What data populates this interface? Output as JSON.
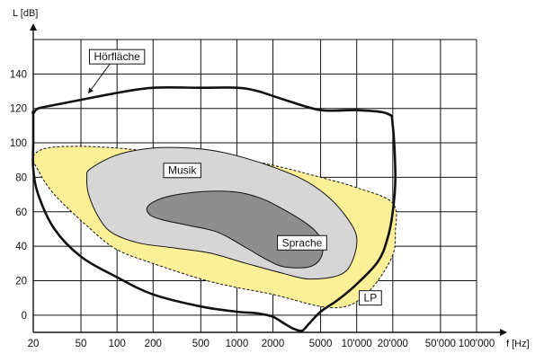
{
  "chart_data": {
    "type": "area",
    "xlabel": "f [Hz]",
    "ylabel": "L [dB]",
    "x_scale": "log",
    "xlim": [
      20,
      100000
    ],
    "ylim": [
      -10,
      160
    ],
    "grid": true,
    "x_ticks": [
      {
        "value": 20,
        "label": "20"
      },
      {
        "value": 50,
        "label": "50"
      },
      {
        "value": 100,
        "label": "100"
      },
      {
        "value": 200,
        "label": "200"
      },
      {
        "value": 500,
        "label": "500"
      },
      {
        "value": 1000,
        "label": "1000"
      },
      {
        "value": 2000,
        "label": "2000"
      },
      {
        "value": 5000,
        "label": "5000"
      },
      {
        "value": 10000,
        "label": "10'000"
      },
      {
        "value": 20000,
        "label": "20'000"
      },
      {
        "value": 50000,
        "label": "50'000"
      },
      {
        "value": 100000,
        "label": "100'000"
      }
    ],
    "y_ticks": [
      0,
      20,
      40,
      60,
      80,
      100,
      120,
      140
    ],
    "regions": [
      {
        "name": "LP",
        "style": "yellow-dashed",
        "fill": "#FBEF98",
        "label_at": {
          "f": 13000,
          "L": 10
        },
        "points": [
          [
            20,
            92
          ],
          [
            26,
            97
          ],
          [
            50,
            98
          ],
          [
            100,
            97
          ],
          [
            200,
            95
          ],
          [
            500,
            93
          ],
          [
            1000,
            91
          ],
          [
            2000,
            87
          ],
          [
            5000,
            80
          ],
          [
            10000,
            74
          ],
          [
            20000,
            65
          ],
          [
            21000,
            48
          ],
          [
            20000,
            35
          ],
          [
            15000,
            20
          ],
          [
            11000,
            10
          ],
          [
            8000,
            5
          ],
          [
            5000,
            5
          ],
          [
            2000,
            12
          ],
          [
            1000,
            16
          ],
          [
            500,
            21
          ],
          [
            200,
            30
          ],
          [
            100,
            38
          ],
          [
            60,
            50
          ],
          [
            30,
            70
          ],
          [
            22,
            84
          ]
        ]
      },
      {
        "name": "Musik",
        "style": "light-gray",
        "fill": "#D6D6D6",
        "label_at": {
          "f": 350,
          "L": 84
        },
        "points": [
          [
            60,
            85
          ],
          [
            100,
            93
          ],
          [
            200,
            97
          ],
          [
            400,
            97
          ],
          [
            700,
            95
          ],
          [
            1200,
            91
          ],
          [
            2000,
            86
          ],
          [
            3500,
            79
          ],
          [
            5500,
            70
          ],
          [
            8000,
            58
          ],
          [
            10000,
            45
          ],
          [
            9000,
            30
          ],
          [
            7000,
            23
          ],
          [
            4000,
            21
          ],
          [
            2500,
            24
          ],
          [
            1200,
            30
          ],
          [
            600,
            36
          ],
          [
            300,
            39
          ],
          [
            150,
            42
          ],
          [
            90,
            48
          ],
          [
            70,
            57
          ],
          [
            58,
            70
          ],
          [
            56,
            80
          ]
        ]
      },
      {
        "name": "Sprache",
        "style": "dark-gray",
        "fill": "#8E8E8E",
        "label_at": {
          "f": 3500,
          "L": 42
        },
        "points": [
          [
            180,
            63
          ],
          [
            240,
            68
          ],
          [
            400,
            71
          ],
          [
            700,
            72
          ],
          [
            1100,
            71
          ],
          [
            1700,
            67
          ],
          [
            2500,
            61
          ],
          [
            3500,
            55
          ],
          [
            4500,
            49
          ],
          [
            5200,
            42
          ],
          [
            5000,
            33
          ],
          [
            4000,
            28
          ],
          [
            2500,
            28
          ],
          [
            1800,
            32
          ],
          [
            1200,
            39
          ],
          [
            700,
            48
          ],
          [
            400,
            52
          ],
          [
            250,
            55
          ],
          [
            190,
            58
          ]
        ]
      },
      {
        "name": "Hörfläche",
        "style": "black-outline",
        "fill": "none",
        "label_at": {
          "f": 100,
          "L": 150
        },
        "arrow_to": {
          "f": 58,
          "L": 128
        },
        "points": [
          [
            20,
            117
          ],
          [
            22,
            120
          ],
          [
            30,
            122
          ],
          [
            50,
            125
          ],
          [
            100,
            129
          ],
          [
            200,
            132
          ],
          [
            500,
            132
          ],
          [
            1000,
            132
          ],
          [
            1500,
            130
          ],
          [
            2500,
            125
          ],
          [
            5000,
            119
          ],
          [
            10000,
            119
          ],
          [
            18000,
            117
          ],
          [
            20000,
            110
          ],
          [
            21000,
            80
          ],
          [
            20000,
            60
          ],
          [
            18000,
            44
          ],
          [
            15000,
            31
          ],
          [
            10000,
            18
          ],
          [
            7000,
            9
          ],
          [
            5000,
            2
          ],
          [
            4000,
            -5
          ],
          [
            3500,
            -9
          ],
          [
            3000,
            -8
          ],
          [
            2500,
            -5
          ],
          [
            2000,
            -1
          ],
          [
            1500,
            1
          ],
          [
            1000,
            2
          ],
          [
            500,
            5
          ],
          [
            200,
            12
          ],
          [
            100,
            22
          ],
          [
            50,
            34
          ],
          [
            30,
            50
          ],
          [
            22,
            70
          ],
          [
            20,
            85
          ],
          [
            20,
            100
          ],
          [
            20,
            117
          ]
        ]
      }
    ]
  }
}
